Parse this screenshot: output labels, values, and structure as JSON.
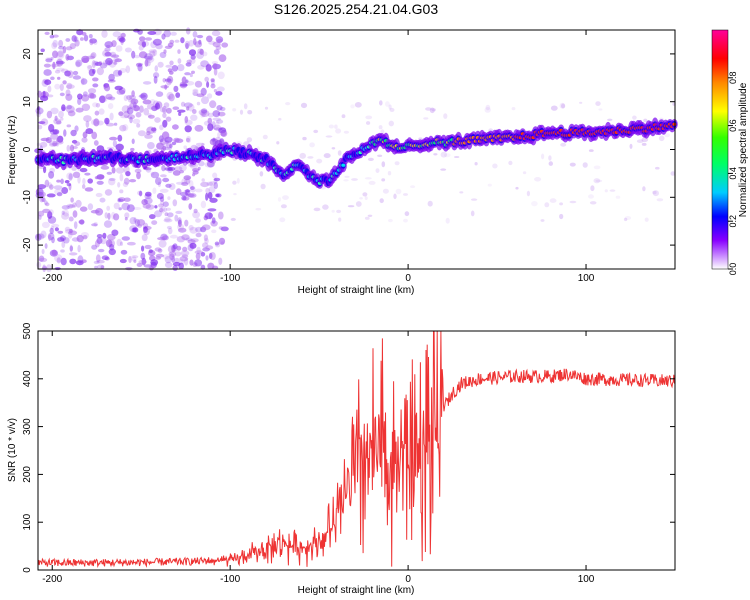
{
  "title": "S126.2025.254.21.04.G03",
  "chart_data": [
    {
      "type": "heatmap",
      "xlabel": "Height of straight line (km)",
      "ylabel": "Frequency (Hz)",
      "xlim": [
        -208,
        150
      ],
      "ylim": [
        -25,
        25
      ],
      "xticks": [
        -200,
        -100,
        0,
        100
      ],
      "yticks": [
        -20,
        -10,
        0,
        10,
        20
      ],
      "ridge_frequency": {
        "x": [
          -210,
          -190,
          -170,
          -150,
          -130,
          -110,
          -100,
          -90,
          -80,
          -70,
          -60,
          -55,
          -50,
          -45,
          -40,
          -35,
          -30,
          -25,
          -20,
          -15,
          -10,
          -5,
          0,
          10,
          20,
          40,
          60,
          80,
          100,
          120,
          150
        ],
        "y": [
          -2,
          -2.2,
          -1.8,
          -2,
          -1.5,
          -1,
          0,
          -1,
          -2,
          -5,
          -3,
          -5.5,
          -6.5,
          -6.5,
          -5,
          -2,
          -1,
          0,
          1,
          2,
          1,
          0,
          0.5,
          1.5,
          1.5,
          2,
          2.5,
          3.5,
          3.5,
          4,
          5
        ]
      },
      "colorbar": {
        "label": "Normalized spectral amplitude",
        "range": [
          0,
          1
        ],
        "ticks": [
          "0.0",
          "0.2",
          "0.4",
          "0.6",
          "0.8"
        ]
      }
    },
    {
      "type": "line",
      "xlabel": "Height of straight line (km)",
      "ylabel": "SNR (10 * v/v)",
      "xlim": [
        -208,
        150
      ],
      "ylim": [
        0,
        500
      ],
      "xticks": [
        -200,
        -100,
        0,
        100
      ],
      "yticks": [
        0,
        100,
        200,
        300,
        400,
        500
      ],
      "series": [
        {
          "name": "SNR",
          "color": "#ee3333",
          "x": [
            -208,
            -180,
            -150,
            -120,
            -110,
            -100,
            -90,
            -80,
            -70,
            -60,
            -50,
            -40,
            -35,
            -30,
            -25,
            -20,
            -15,
            -10,
            -5,
            0,
            5,
            10,
            15,
            20,
            25,
            30,
            40,
            60,
            80,
            90,
            100,
            120,
            150
          ],
          "y": [
            15,
            15,
            16,
            18,
            20,
            20,
            30,
            45,
            55,
            45,
            60,
            100,
            160,
            200,
            240,
            230,
            250,
            230,
            240,
            230,
            250,
            250,
            300,
            340,
            370,
            390,
            400,
            405,
            405,
            410,
            400,
            398,
            395
          ]
        }
      ]
    }
  ]
}
